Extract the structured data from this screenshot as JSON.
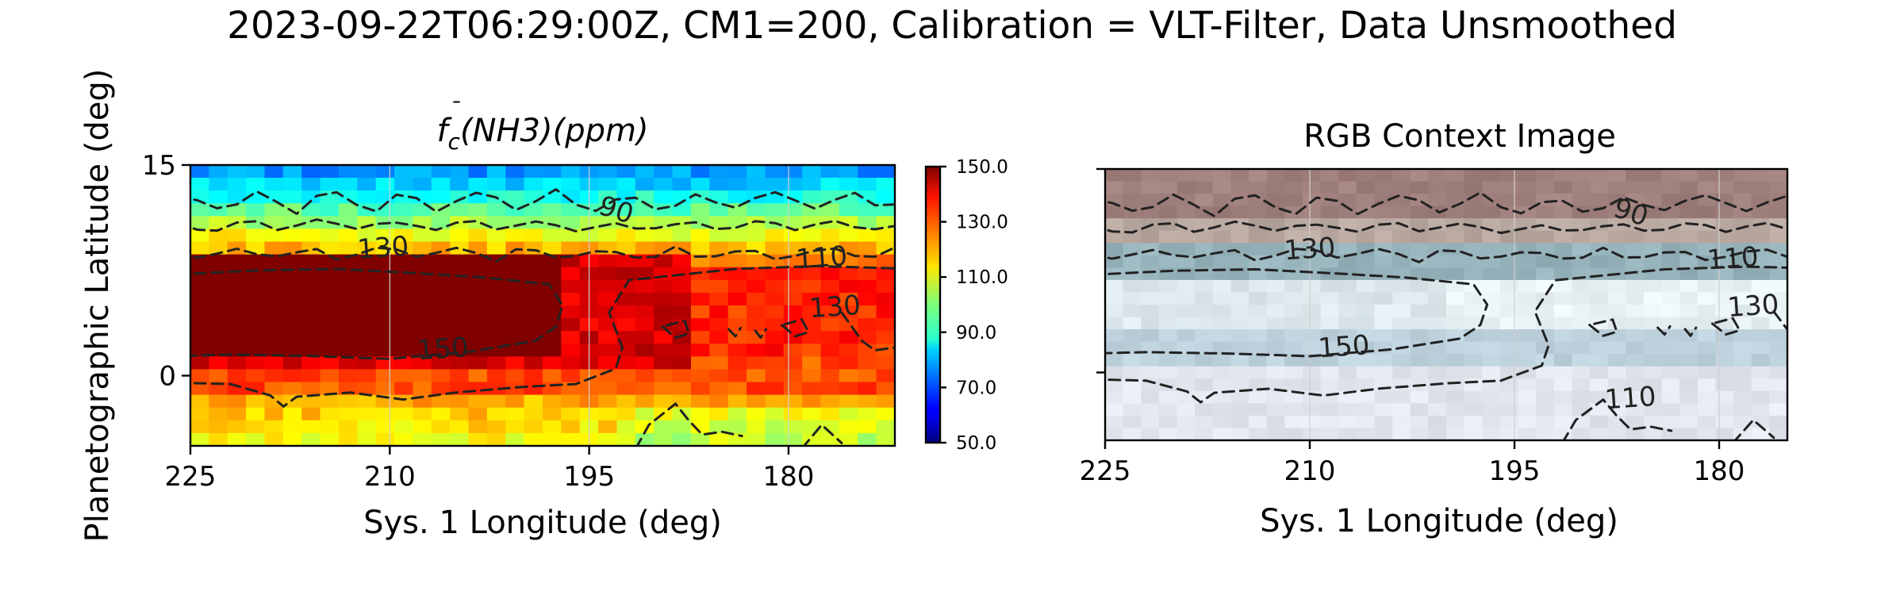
{
  "suptitle": "2023-09-22T06:29:00Z, CM1=200, Calibration = VLT-Filter, Data Unsmoothed",
  "ylabel": "Planetographic Latitude (deg)",
  "chart_data": [
    {
      "type": "heatmap",
      "title_base": "f",
      "title_sub": "c",
      "title_rest": "(NH3)(ppm)",
      "xlabel": "Sys. 1 Longitude (deg)",
      "xlim": [
        225,
        172
      ],
      "ylim": [
        -5,
        15
      ],
      "xticks": [
        "225",
        "210",
        "195",
        "180"
      ],
      "yticks": [
        "15",
        "0"
      ],
      "colorbar": {
        "min": 50,
        "max": 150,
        "ticks": [
          "150.0",
          "130.0",
          "110.0",
          "90.0",
          "70.0",
          "50.0"
        ],
        "colormap": "jet"
      },
      "contour_labels": [
        {
          "text": "90",
          "lon": 193,
          "lat": 11.7
        },
        {
          "text": "130",
          "lon": 210.5,
          "lat": 9.0
        },
        {
          "text": "110",
          "lon": 177.5,
          "lat": 8.3
        },
        {
          "text": "130",
          "lon": 176.5,
          "lat": 4.8
        },
        {
          "text": "150",
          "lon": 206,
          "lat": 1.8
        }
      ],
      "grid": true
    },
    {
      "type": "image",
      "title": "RGB Context Image",
      "xlabel": "Sys. 1 Longitude (deg)",
      "xlim": [
        225,
        175
      ],
      "ylim": [
        -5,
        15
      ],
      "xticks": [
        "225",
        "210",
        "195",
        "180"
      ],
      "contour_labels": [
        {
          "text": "90",
          "lon": 186.5,
          "lat": 11.7
        },
        {
          "text": "130",
          "lon": 210,
          "lat": 9.0
        },
        {
          "text": "110",
          "lon": 179,
          "lat": 8.3
        },
        {
          "text": "130",
          "lon": 177.5,
          "lat": 4.8
        },
        {
          "text": "150",
          "lon": 207.5,
          "lat": 1.8
        },
        {
          "text": "110",
          "lon": 186.5,
          "lat": -2.0
        }
      ],
      "grid": true
    }
  ]
}
